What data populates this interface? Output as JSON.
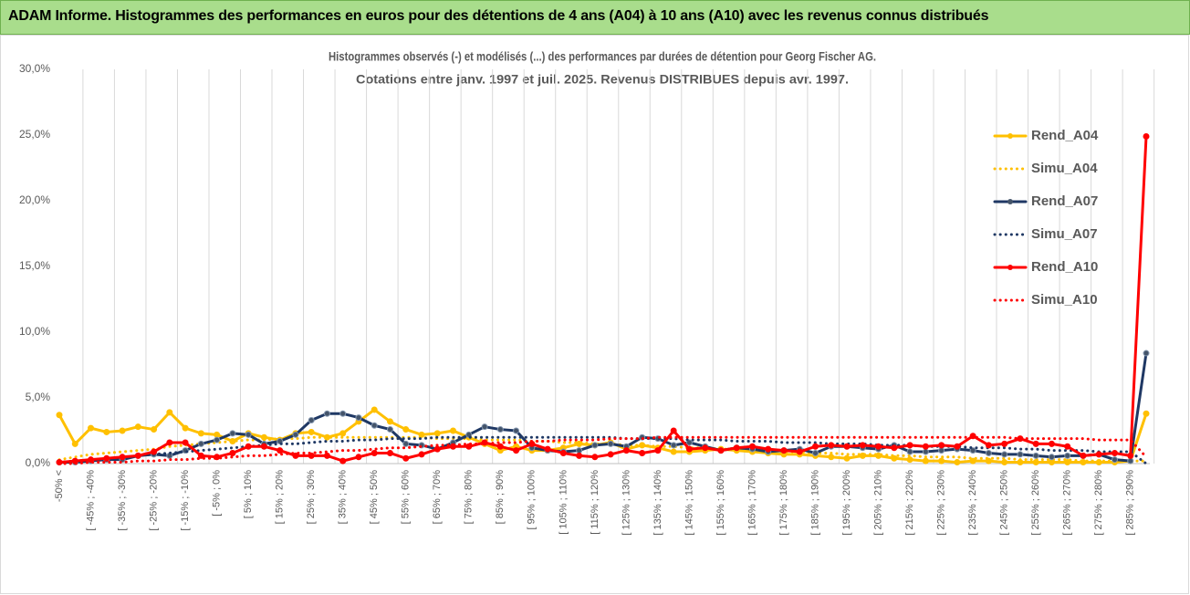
{
  "header": {
    "title": "ADAM Informe. Histogrammes des performances en euros pour des détentions de 4 ans (A04) à 10 ans (A10) avec les revenus connus distribués"
  },
  "chart_data": {
    "type": "line",
    "title_lines": [
      "Histogrammes observés (-) et modélisés (...) des performances par durées de détention pour Georg Fischer AG.",
      "Cotations entre janv. 1997 et juil. 2025. Revenus DISTRIBUES depuis avr. 1997."
    ],
    "categories": [
      "-50% <",
      null,
      "[ -45% ; -40%",
      null,
      "[ -35% ; -30%",
      null,
      "[ -25% ; -20%",
      null,
      "[ -15% ; -10%",
      null,
      "[ -5% ; 0%",
      null,
      "[ 5% ; 10%",
      null,
      "[ 15% ; 20%",
      null,
      "[ 25% ; 30%",
      null,
      "[ 35% ; 40%",
      null,
      "[ 45% ; 50%",
      null,
      "[ 55% ; 60%",
      null,
      "[ 65% ; 70%",
      null,
      "[ 75% ; 80%",
      null,
      "[ 85% ; 90%",
      null,
      "[ 95% ; 100%",
      null,
      "[ 105% ; 110%",
      null,
      "[ 115% ; 120%",
      null,
      "[ 125% ; 130%",
      null,
      "[ 135% ; 140%",
      null,
      "[ 145% ; 150%",
      null,
      "[ 155% ; 160%",
      null,
      "[ 165% ; 170%",
      null,
      "[ 175% ; 180%",
      null,
      "[ 185% ; 190%",
      null,
      "[ 195% ; 200%",
      null,
      "[ 205% ; 210%",
      null,
      "[ 215% ; 220%",
      null,
      "[ 225% ; 230%",
      null,
      "[ 235% ; 240%",
      null,
      "[ 245% ; 250%",
      null,
      "[ 255% ; 260%",
      null,
      "[ 265% ; 270%",
      null,
      "[ 275% ; 280%",
      null,
      "[ 285% ; 290%",
      null
    ],
    "series": [
      {
        "name": "Rend_A04",
        "color": "#FFC000",
        "line_style": "solid",
        "markers": true,
        "values": [
          3.7,
          1.5,
          2.7,
          2.4,
          2.5,
          2.8,
          2.6,
          3.9,
          2.7,
          2.3,
          2.2,
          1.7,
          2.3,
          2.0,
          1.8,
          2.3,
          2.4,
          2.0,
          2.3,
          3.2,
          4.1,
          3.2,
          2.6,
          2.2,
          2.3,
          2.5,
          2.0,
          1.5,
          1.0,
          1.3,
          1.0,
          1.0,
          1.2,
          1.5,
          1.4,
          1.6,
          1.1,
          1.4,
          1.2,
          0.9,
          0.9,
          1.0,
          1.1,
          1.0,
          0.9,
          0.8,
          0.7,
          0.7,
          0.6,
          0.5,
          0.4,
          0.6,
          0.6,
          0.4,
          0.3,
          0.2,
          0.2,
          0.1,
          0.2,
          0.2,
          0.1,
          0.1,
          0.1,
          0.1,
          0.1,
          0.1,
          0.1,
          0.1,
          0.2,
          3.8
        ]
      },
      {
        "name": "Simu_A04",
        "color": "#FFC000",
        "line_style": "dotted",
        "markers": false,
        "values": [
          0.3,
          0.5,
          0.7,
          0.8,
          0.9,
          1.0,
          1.1,
          1.3,
          1.4,
          1.5,
          1.6,
          1.7,
          1.8,
          1.8,
          1.9,
          1.9,
          2.0,
          2.0,
          2.0,
          2.0,
          2.0,
          2.0,
          2.0,
          2.0,
          1.9,
          1.9,
          1.9,
          1.8,
          1.8,
          1.8,
          1.7,
          1.7,
          1.6,
          1.6,
          1.5,
          1.5,
          1.4,
          1.4,
          1.3,
          1.3,
          1.2,
          1.2,
          1.1,
          1.1,
          1.0,
          1.0,
          0.9,
          0.9,
          0.8,
          0.8,
          0.7,
          0.7,
          0.7,
          0.6,
          0.6,
          0.5,
          0.5,
          0.5,
          0.4,
          0.4,
          0.4,
          0.3,
          0.3,
          0.3,
          0.3,
          0.2,
          0.2,
          0.2,
          0.2,
          0.2
        ]
      },
      {
        "name": "Rend_A07",
        "color": "#1F3864",
        "line_style": "solid",
        "markers": true,
        "values": [
          0.1,
          0.1,
          0.2,
          0.3,
          0.3,
          0.6,
          0.7,
          0.6,
          1.0,
          1.5,
          1.8,
          2.3,
          2.2,
          1.5,
          1.7,
          2.2,
          3.3,
          3.8,
          3.8,
          3.5,
          2.9,
          2.6,
          1.5,
          1.4,
          1.1,
          1.6,
          2.2,
          2.8,
          2.6,
          2.5,
          1.2,
          1.0,
          0.9,
          1.0,
          1.4,
          1.5,
          1.3,
          2.0,
          1.9,
          1.4,
          1.6,
          1.3,
          1.0,
          1.2,
          1.1,
          0.9,
          1.0,
          1.1,
          0.8,
          1.3,
          1.3,
          1.2,
          1.1,
          1.4,
          0.9,
          0.9,
          1.0,
          1.1,
          1.0,
          0.8,
          0.7,
          0.7,
          0.6,
          0.5,
          0.6,
          0.6,
          0.7,
          0.3,
          0.2,
          8.4
        ]
      },
      {
        "name": "Simu_A07",
        "color": "#1F3864",
        "line_style": "dotted",
        "markers": false,
        "values": [
          0.1,
          0.2,
          0.3,
          0.4,
          0.5,
          0.6,
          0.7,
          0.8,
          0.9,
          1.0,
          1.1,
          1.2,
          1.3,
          1.4,
          1.5,
          1.5,
          1.6,
          1.7,
          1.7,
          1.8,
          1.8,
          1.9,
          1.9,
          1.9,
          2.0,
          2.0,
          2.0,
          2.0,
          2.0,
          2.0,
          2.0,
          2.0,
          2.0,
          2.0,
          2.0,
          2.0,
          1.9,
          1.9,
          1.9,
          1.9,
          1.8,
          1.8,
          1.8,
          1.7,
          1.7,
          1.7,
          1.6,
          1.6,
          1.6,
          1.5,
          1.5,
          1.5,
          1.4,
          1.4,
          1.4,
          1.3,
          1.3,
          1.3,
          1.2,
          1.2,
          1.2,
          1.1,
          1.1,
          1.0,
          1.0,
          1.0,
          0.9,
          0.9,
          0.9,
          0.0
        ]
      },
      {
        "name": "Rend_A10",
        "color": "#FF0000",
        "line_style": "solid",
        "markers": true,
        "values": [
          0.1,
          0.2,
          0.3,
          0.4,
          0.5,
          0.6,
          0.9,
          1.6,
          1.6,
          0.6,
          0.5,
          0.8,
          1.3,
          1.3,
          1.0,
          0.6,
          0.6,
          0.6,
          0.2,
          0.5,
          0.8,
          0.8,
          0.4,
          0.7,
          1.1,
          1.3,
          1.3,
          1.6,
          1.3,
          1.0,
          1.5,
          1.1,
          0.8,
          0.6,
          0.5,
          0.7,
          1.0,
          0.8,
          1.0,
          2.5,
          1.1,
          1.2,
          1.0,
          1.2,
          1.3,
          1.1,
          1.0,
          0.9,
          1.3,
          1.4,
          1.3,
          1.4,
          1.3,
          1.2,
          1.4,
          1.3,
          1.4,
          1.3,
          2.1,
          1.4,
          1.5,
          1.9,
          1.5,
          1.5,
          1.3,
          0.6,
          0.7,
          0.8,
          0.6,
          24.9
        ]
      },
      {
        "name": "Simu_A10",
        "color": "#FF0000",
        "line_style": "dotted",
        "markers": false,
        "values": [
          0.0,
          0.0,
          0.1,
          0.1,
          0.1,
          0.2,
          0.2,
          0.3,
          0.3,
          0.4,
          0.4,
          0.5,
          0.6,
          0.6,
          0.7,
          0.8,
          0.8,
          0.9,
          1.0,
          1.0,
          1.1,
          1.2,
          1.2,
          1.3,
          1.4,
          1.4,
          1.5,
          1.5,
          1.6,
          1.6,
          1.7,
          1.7,
          1.8,
          1.8,
          1.8,
          1.9,
          1.9,
          1.9,
          2.0,
          2.0,
          2.0,
          2.0,
          2.0,
          2.0,
          2.0,
          2.0,
          2.0,
          2.0,
          2.0,
          2.0,
          2.0,
          2.0,
          2.0,
          2.0,
          2.0,
          2.0,
          2.0,
          2.0,
          2.0,
          2.0,
          2.0,
          1.9,
          1.9,
          1.9,
          1.9,
          1.9,
          1.8,
          1.8,
          1.8,
          0.5
        ]
      }
    ],
    "ylim": [
      0,
      30
    ],
    "yticks": [
      {
        "value": 0,
        "label": "0,0%"
      },
      {
        "value": 5,
        "label": "5,0%"
      },
      {
        "value": 10,
        "label": "10,0%"
      },
      {
        "value": 15,
        "label": "15,0%"
      },
      {
        "value": 20,
        "label": "20,0%"
      },
      {
        "value": 25,
        "label": "25,0%"
      },
      {
        "value": 30,
        "label": "30,0%"
      }
    ],
    "xgrid": true,
    "ygrid": false,
    "legend": "right"
  }
}
